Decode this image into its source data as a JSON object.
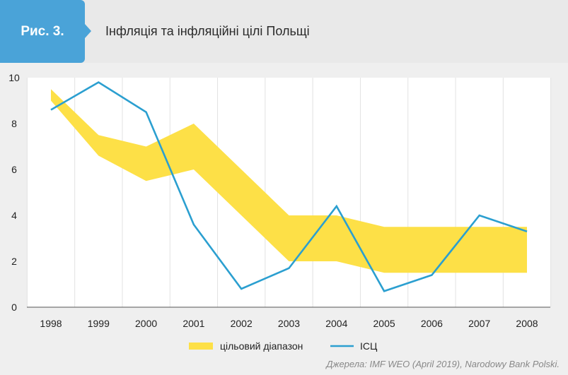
{
  "figure": {
    "label": "Рис. 3.",
    "title": "Інфляція та інфляційні цілі Польщі"
  },
  "source": "Джерела: IMF WEO (April 2019), Narodowy Bank Polski.",
  "colors": {
    "badge": "#4aa3d8",
    "band": "#fde047",
    "line": "#2b9fd0"
  },
  "chart_data": {
    "type": "line",
    "x": [
      "1998",
      "1999",
      "2000",
      "2001",
      "2002",
      "2003",
      "2004",
      "2005",
      "2006",
      "2007",
      "2008"
    ],
    "ylim": [
      0,
      10
    ],
    "yticks": [
      0,
      2,
      4,
      6,
      8,
      10
    ],
    "grid": "vertical",
    "legend_position": "bottom-center",
    "band": {
      "name": "цільовий діапазон",
      "lower": [
        9.0,
        6.6,
        5.5,
        6.0,
        4.0,
        2.0,
        2.0,
        1.5,
        1.5,
        1.5,
        1.5
      ],
      "upper": [
        9.5,
        7.5,
        7.0,
        8.0,
        6.0,
        4.0,
        4.0,
        3.5,
        3.5,
        3.5,
        3.5
      ]
    },
    "series": [
      {
        "name": "ІСЦ",
        "values": [
          8.6,
          9.8,
          8.5,
          3.6,
          0.8,
          1.7,
          4.4,
          0.7,
          1.4,
          4.0,
          3.3
        ]
      }
    ]
  }
}
